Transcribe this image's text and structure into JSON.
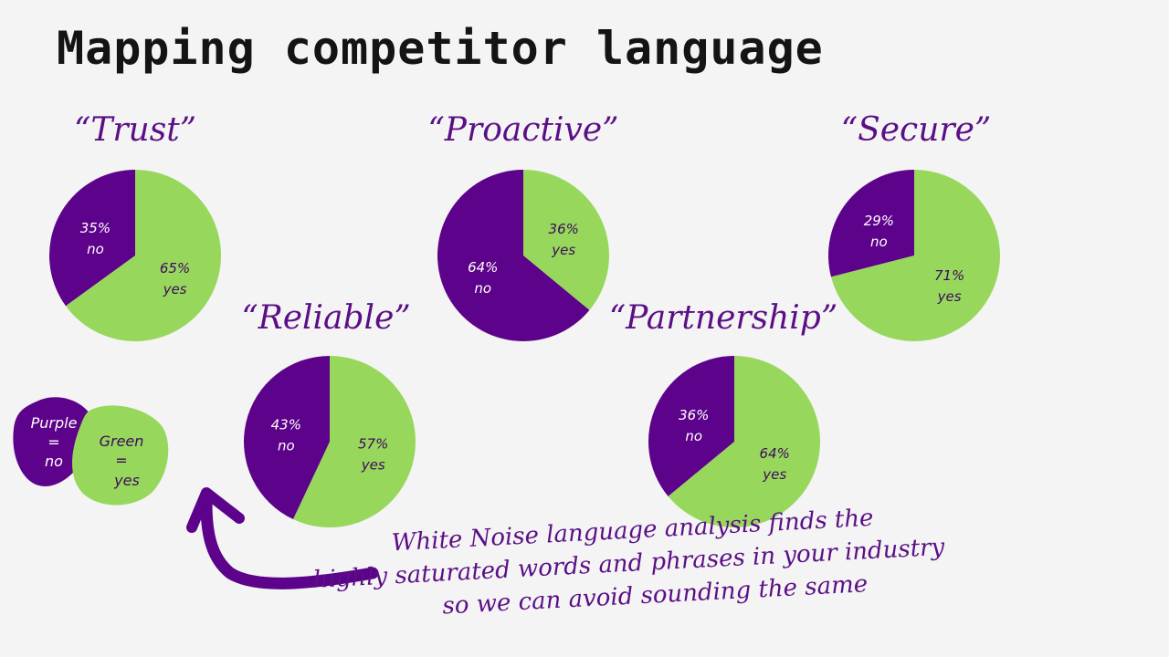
{
  "title": "Mapping competitor language",
  "colors": {
    "no": "#5d028a",
    "yes": "#97d85c",
    "text": "#5b0f86"
  },
  "chart_data": [
    {
      "type": "pie",
      "title": "“Trust”",
      "slices": [
        {
          "label": "no",
          "value": 35,
          "text": "35%"
        },
        {
          "label": "yes",
          "value": 65,
          "text": "65%"
        }
      ]
    },
    {
      "type": "pie",
      "title": "“Proactive”",
      "slices": [
        {
          "label": "no",
          "value": 64,
          "text": "64%"
        },
        {
          "label": "yes",
          "value": 36,
          "text": "36%"
        }
      ]
    },
    {
      "type": "pie",
      "title": "“Secure”",
      "slices": [
        {
          "label": "no",
          "value": 29,
          "text": "29%"
        },
        {
          "label": "yes",
          "value": 71,
          "text": "71%"
        }
      ]
    },
    {
      "type": "pie",
      "title": "“Reliable”",
      "slices": [
        {
          "label": "no",
          "value": 43,
          "text": "43%"
        },
        {
          "label": "yes",
          "value": 57,
          "text": "57%"
        }
      ]
    },
    {
      "type": "pie",
      "title": "“Partnership”",
      "slices": [
        {
          "label": "no",
          "value": 36,
          "text": "36%"
        },
        {
          "label": "yes",
          "value": 64,
          "text": "64%"
        }
      ]
    }
  ],
  "legend": {
    "purple": {
      "line1": "Purple",
      "line2": "=",
      "line3": "no"
    },
    "green": {
      "line1": "Green",
      "line2": "=",
      "line3": "yes"
    }
  },
  "note": {
    "line1": "White Noise language analysis finds the",
    "line2": "highly saturated words and phrases in your industry",
    "line3": "so we can avoid sounding the same"
  }
}
